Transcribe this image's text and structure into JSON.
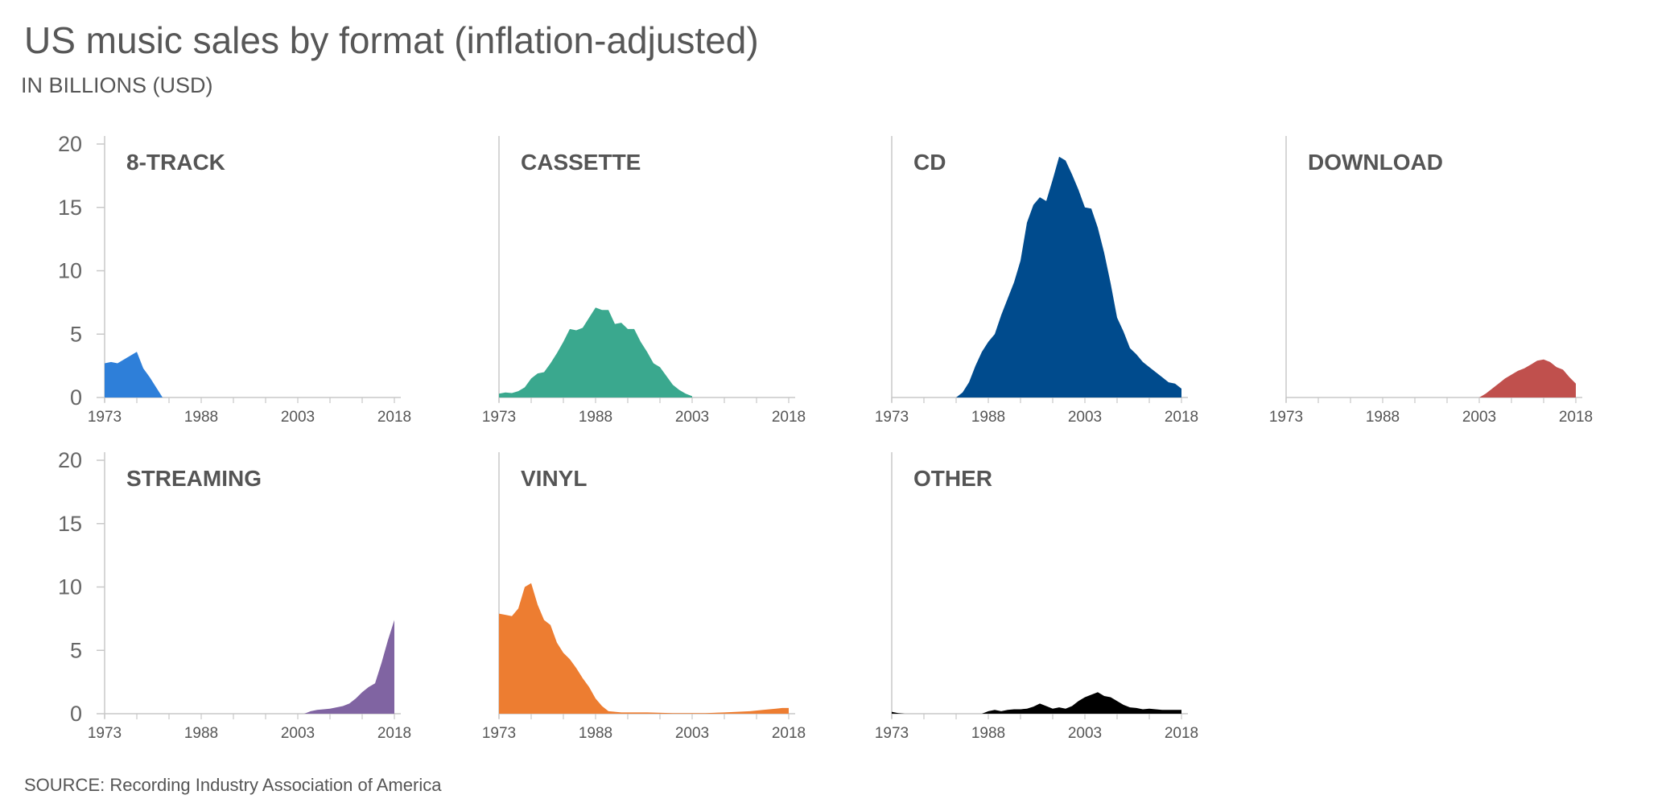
{
  "chart_data": {
    "type": "area",
    "title": "US music sales by format (inflation-adjusted)",
    "subtitle": "IN BILLIONS (USD)",
    "source": "SOURCE: Recording Industry Association of America",
    "ylim": [
      0,
      20
    ],
    "y_ticks": [
      "0",
      "5",
      "10",
      "15",
      "20"
    ],
    "y_tick_values": [
      0,
      5,
      10,
      15,
      20
    ],
    "x_range": [
      1973,
      2019
    ],
    "x_ticks": [
      "1973",
      "1988",
      "2003",
      "2018"
    ],
    "x_tick_values": [
      1973,
      1988,
      2003,
      2018
    ],
    "panels": [
      {
        "name": "8-TRACK",
        "color": "#2e7fd9",
        "x": [
          1973,
          1974,
          1975,
          1976,
          1977,
          1978,
          1979,
          1980,
          1981,
          1982
        ],
        "values": [
          2.7,
          2.8,
          2.7,
          3.0,
          3.3,
          3.6,
          2.3,
          1.6,
          0.8,
          0
        ]
      },
      {
        "name": "CASSETTE",
        "color": "#3aa88e",
        "x": [
          1973,
          1974,
          1975,
          1976,
          1977,
          1978,
          1979,
          1980,
          1981,
          1982,
          1983,
          1984,
          1985,
          1986,
          1987,
          1988,
          1989,
          1990,
          1991,
          1992,
          1993,
          1994,
          1995,
          1996,
          1997,
          1998,
          1999,
          2000,
          2001,
          2002,
          2003
        ],
        "values": [
          0.3,
          0.4,
          0.35,
          0.5,
          0.8,
          1.5,
          1.9,
          2.0,
          2.7,
          3.5,
          4.4,
          5.4,
          5.3,
          5.5,
          6.3,
          7.1,
          6.9,
          6.9,
          5.8,
          5.9,
          5.4,
          5.4,
          4.4,
          3.6,
          2.7,
          2.4,
          1.7,
          1.0,
          0.6,
          0.3,
          0.1
        ]
      },
      {
        "name": "CD",
        "color": "#004b8d",
        "x": [
          1983,
          1984,
          1985,
          1986,
          1987,
          1988,
          1989,
          1990,
          1991,
          1992,
          1993,
          1994,
          1995,
          1996,
          1997,
          1998,
          1999,
          2000,
          2001,
          2002,
          2003,
          2004,
          2005,
          2006,
          2007,
          2008,
          2009,
          2010,
          2011,
          2012,
          2013,
          2014,
          2015,
          2016,
          2017,
          2018
        ],
        "values": [
          0,
          0.4,
          1.2,
          2.5,
          3.6,
          4.4,
          5.0,
          6.5,
          7.8,
          9.1,
          10.8,
          13.8,
          15.2,
          15.8,
          15.5,
          17.2,
          19.0,
          18.7,
          17.6,
          16.4,
          15.0,
          14.9,
          13.4,
          11.4,
          9.0,
          6.3,
          5.2,
          3.9,
          3.4,
          2.8,
          2.4,
          2.0,
          1.6,
          1.2,
          1.1,
          0.7
        ]
      },
      {
        "name": "DOWNLOAD",
        "color": "#c0504d",
        "x": [
          2003,
          2004,
          2005,
          2006,
          2007,
          2008,
          2009,
          2010,
          2011,
          2012,
          2013,
          2014,
          2015,
          2016,
          2017,
          2018
        ],
        "values": [
          0,
          0.3,
          0.7,
          1.1,
          1.5,
          1.8,
          2.1,
          2.3,
          2.6,
          2.9,
          3.0,
          2.8,
          2.4,
          2.2,
          1.6,
          1.1
        ]
      },
      {
        "name": "STREAMING",
        "color": "#8064a2",
        "x": [
          2004,
          2005,
          2006,
          2007,
          2008,
          2009,
          2010,
          2011,
          2012,
          2013,
          2014,
          2015,
          2016,
          2017,
          2018
        ],
        "values": [
          0,
          0.2,
          0.3,
          0.35,
          0.4,
          0.5,
          0.6,
          0.8,
          1.2,
          1.7,
          2.1,
          2.4,
          4.0,
          5.8,
          7.4
        ]
      },
      {
        "name": "VINYL",
        "color": "#ed7d31",
        "x": [
          1973,
          1974,
          1975,
          1976,
          1977,
          1978,
          1979,
          1980,
          1981,
          1982,
          1983,
          1984,
          1985,
          1986,
          1987,
          1988,
          1989,
          1990,
          1991,
          1992,
          1993,
          1994,
          1995,
          1996,
          2000,
          2005,
          2008,
          2010,
          2012,
          2014,
          2016,
          2017,
          2018
        ],
        "values": [
          7.9,
          7.8,
          7.7,
          8.3,
          10.0,
          10.3,
          8.6,
          7.4,
          7.0,
          5.6,
          4.8,
          4.3,
          3.6,
          2.8,
          2.1,
          1.2,
          0.6,
          0.2,
          0.15,
          0.1,
          0.1,
          0.1,
          0.1,
          0.1,
          0.05,
          0.05,
          0.1,
          0.15,
          0.2,
          0.3,
          0.4,
          0.45,
          0.45
        ]
      },
      {
        "name": "OTHER",
        "color": "#000000",
        "x": [
          1973,
          1974,
          1975,
          1987,
          1988,
          1989,
          1990,
          1991,
          1992,
          1993,
          1994,
          1995,
          1996,
          1997,
          1998,
          1999,
          2000,
          2001,
          2002,
          2003,
          2004,
          2005,
          2006,
          2007,
          2008,
          2009,
          2010,
          2011,
          2012,
          2013,
          2014,
          2015,
          2016,
          2017,
          2018
        ],
        "values": [
          0.15,
          0.05,
          0,
          0,
          0.2,
          0.3,
          0.2,
          0.3,
          0.35,
          0.35,
          0.4,
          0.55,
          0.8,
          0.6,
          0.4,
          0.5,
          0.4,
          0.6,
          1.0,
          1.3,
          1.5,
          1.7,
          1.4,
          1.3,
          1.0,
          0.7,
          0.5,
          0.45,
          0.35,
          0.4,
          0.35,
          0.3,
          0.3,
          0.3,
          0.3
        ]
      }
    ]
  }
}
